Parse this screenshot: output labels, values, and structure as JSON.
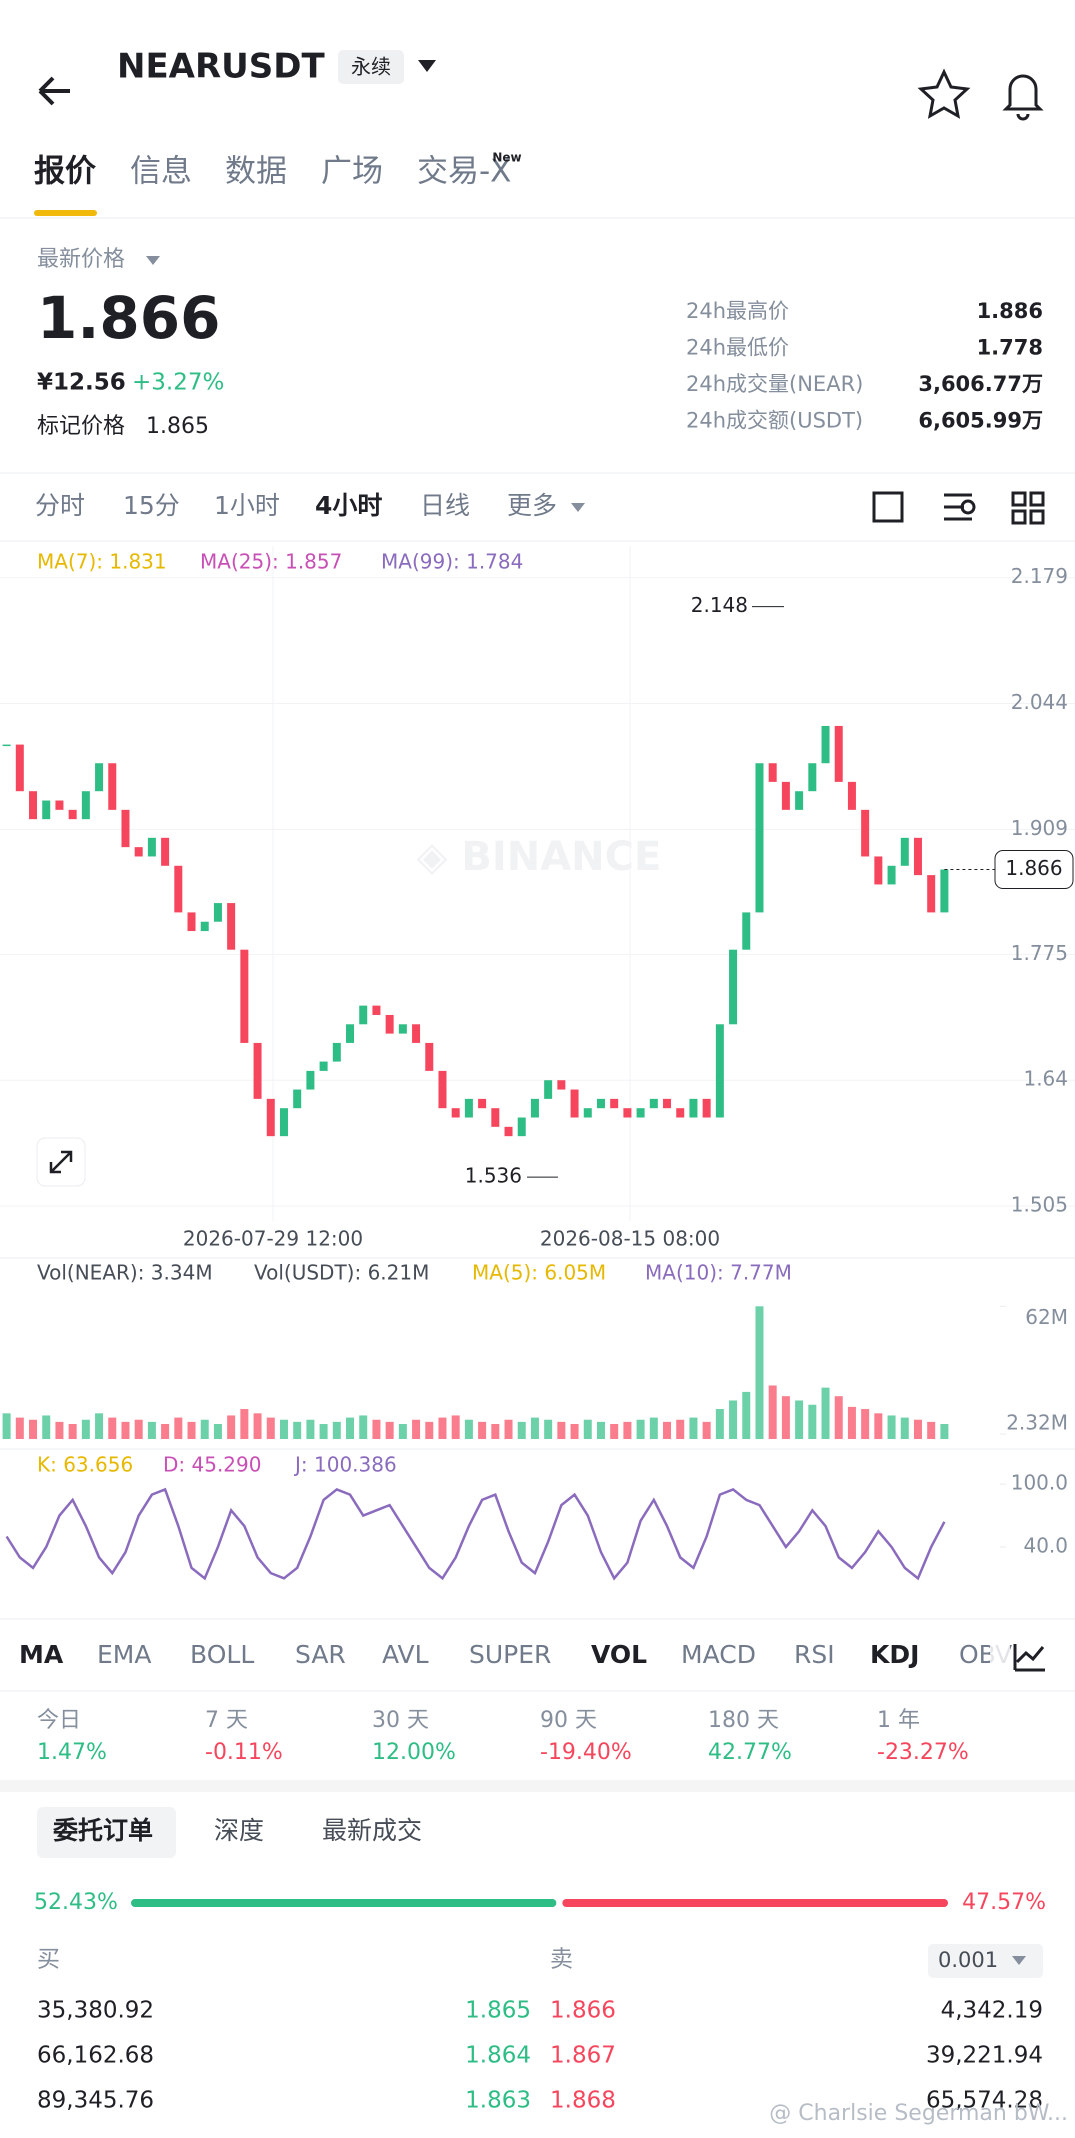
{
  "header": {
    "symbol": "NEARUSDT",
    "badge": "永续"
  },
  "tabs": [
    "报价",
    "信息",
    "数据",
    "广场",
    "交易-X"
  ],
  "tab_badge": "New",
  "price": {
    "label": "最新价格",
    "last": "1.866",
    "cny": "¥12.56",
    "change": "+3.27%",
    "mark_label": "标记价格",
    "mark": "1.865"
  },
  "stats": [
    {
      "label": "24h最高价",
      "value": "1.886"
    },
    {
      "label": "24h最低价",
      "value": "1.778"
    },
    {
      "label": "24h成交量(NEAR)",
      "value": "3,606.77万"
    },
    {
      "label": "24h成交额(USDT)",
      "value": "6,605.99万"
    }
  ],
  "intervals": [
    "分时",
    "15分",
    "1小时",
    "4小时",
    "日线",
    "更多"
  ],
  "chart_data": {
    "type": "candlestick",
    "up_color": "#2ebd85",
    "down_color": "#f6465d",
    "ma_legend": [
      "MA(7): 1.831",
      "MA(25): 1.857",
      "MA(99): 1.784"
    ],
    "ma_colors": [
      "#e6b800",
      "#c84fb5",
      "#8a6bbd"
    ],
    "close": [
      2.0,
      1.95,
      1.92,
      1.94,
      1.93,
      1.92,
      1.95,
      1.98,
      1.93,
      1.89,
      1.88,
      1.9,
      1.87,
      1.82,
      1.8,
      1.81,
      1.83,
      1.78,
      1.68,
      1.62,
      1.58,
      1.61,
      1.63,
      1.65,
      1.66,
      1.68,
      1.7,
      1.72,
      1.71,
      1.69,
      1.7,
      1.68,
      1.65,
      1.61,
      1.6,
      1.62,
      1.61,
      1.59,
      1.58,
      1.6,
      1.62,
      1.64,
      1.63,
      1.6,
      1.61,
      1.62,
      1.61,
      1.6,
      1.61,
      1.62,
      1.61,
      1.6,
      1.62,
      1.6,
      1.7,
      1.78,
      1.82,
      1.98,
      1.96,
      1.93,
      1.95,
      1.98,
      2.02,
      1.96,
      1.93,
      1.88,
      1.85,
      1.87,
      1.9,
      1.86,
      1.82,
      1.866
    ],
    "ylim": [
      1.489,
      2.213
    ],
    "yticks": [
      2.179,
      2.044,
      1.909,
      1.775,
      1.64,
      1.505
    ],
    "x_labels": [
      "2026-07-29 12:00",
      "2026-08-15 08:00"
    ],
    "high_label": 2.148,
    "low_label": 1.536,
    "current": 1.866,
    "volume": {
      "legend": [
        "Vol(NEAR): 3.34M",
        "Vol(USDT): 6.21M",
        "MA(5): 6.05M",
        "MA(10): 7.77M"
      ],
      "values": [
        12,
        10,
        9,
        11,
        8,
        7,
        9,
        12,
        10,
        8,
        9,
        8,
        7,
        10,
        8,
        9,
        7,
        11,
        14,
        12,
        10,
        9,
        8,
        9,
        7,
        8,
        10,
        11,
        9,
        8,
        7,
        9,
        8,
        10,
        11,
        9,
        8,
        7,
        9,
        8,
        10,
        9,
        8,
        7,
        9,
        8,
        7,
        8,
        9,
        10,
        8,
        9,
        10,
        8,
        14,
        18,
        22,
        62,
        25,
        20,
        18,
        16,
        24,
        20,
        15,
        14,
        12,
        11,
        10,
        9,
        8,
        7
      ],
      "ylim": [
        0,
        64
      ],
      "yticks": [
        {
          "value": 62,
          "label": "62M"
        },
        {
          "value": 2.32,
          "label": "2.32M"
        }
      ]
    },
    "kdj": {
      "legend": [
        "K: 63.656",
        "D: 45.290",
        "J: 100.386"
      ],
      "k": [
        50,
        30,
        20,
        40,
        70,
        85,
        60,
        30,
        15,
        35,
        70,
        90,
        95,
        60,
        20,
        10,
        40,
        75,
        60,
        30,
        15,
        10,
        20,
        50,
        85,
        95,
        90,
        70,
        75,
        80,
        60,
        40,
        20,
        10,
        30,
        60,
        85,
        90,
        55,
        25,
        15,
        45,
        80,
        90,
        70,
        35,
        10,
        25,
        65,
        85,
        60,
        30,
        20,
        50,
        90,
        95,
        85,
        80,
        60,
        40,
        55,
        75,
        60,
        30,
        20,
        35,
        55,
        40,
        20,
        10,
        40,
        64
      ],
      "ylim": [
        -26,
        104
      ],
      "yticks": [
        {
          "value": 100,
          "label": "100.0"
        },
        {
          "value": 40,
          "label": "40.0"
        }
      ]
    }
  },
  "indicators": [
    "MA",
    "EMA",
    "BOLL",
    "SAR",
    "AVL",
    "SUPER",
    "VOL",
    "MACD",
    "RSI",
    "KDJ",
    "OBV"
  ],
  "returns": {
    "periods": [
      "今日",
      "7 天",
      "30 天",
      "90 天",
      "180 天",
      "1 年"
    ],
    "values": [
      1.47,
      -0.11,
      12.0,
      -19.4,
      42.77,
      -23.27
    ],
    "value_labels": [
      "1.47%",
      "-0.11%",
      "12.00%",
      "-19.40%",
      "42.77%",
      "-23.27%"
    ]
  },
  "order_tabs": [
    "委托订单",
    "深度",
    "最新成交"
  ],
  "ratio": {
    "values": [
      52.43,
      47.57
    ],
    "value_labels": [
      "52.43%",
      "47.57%"
    ]
  },
  "book": {
    "buy_label": "买",
    "sell_label": "卖",
    "step": "0.001",
    "rows": [
      [
        "35,380.92",
        "1.865",
        "1.866",
        "4,342.19"
      ],
      [
        "66,162.68",
        "1.864",
        "1.867",
        "39,221.94"
      ],
      [
        "89,345.76",
        "1.863",
        "1.868",
        "65,574.28"
      ]
    ]
  },
  "watermark": "@ Charlsie Segerman bW..."
}
